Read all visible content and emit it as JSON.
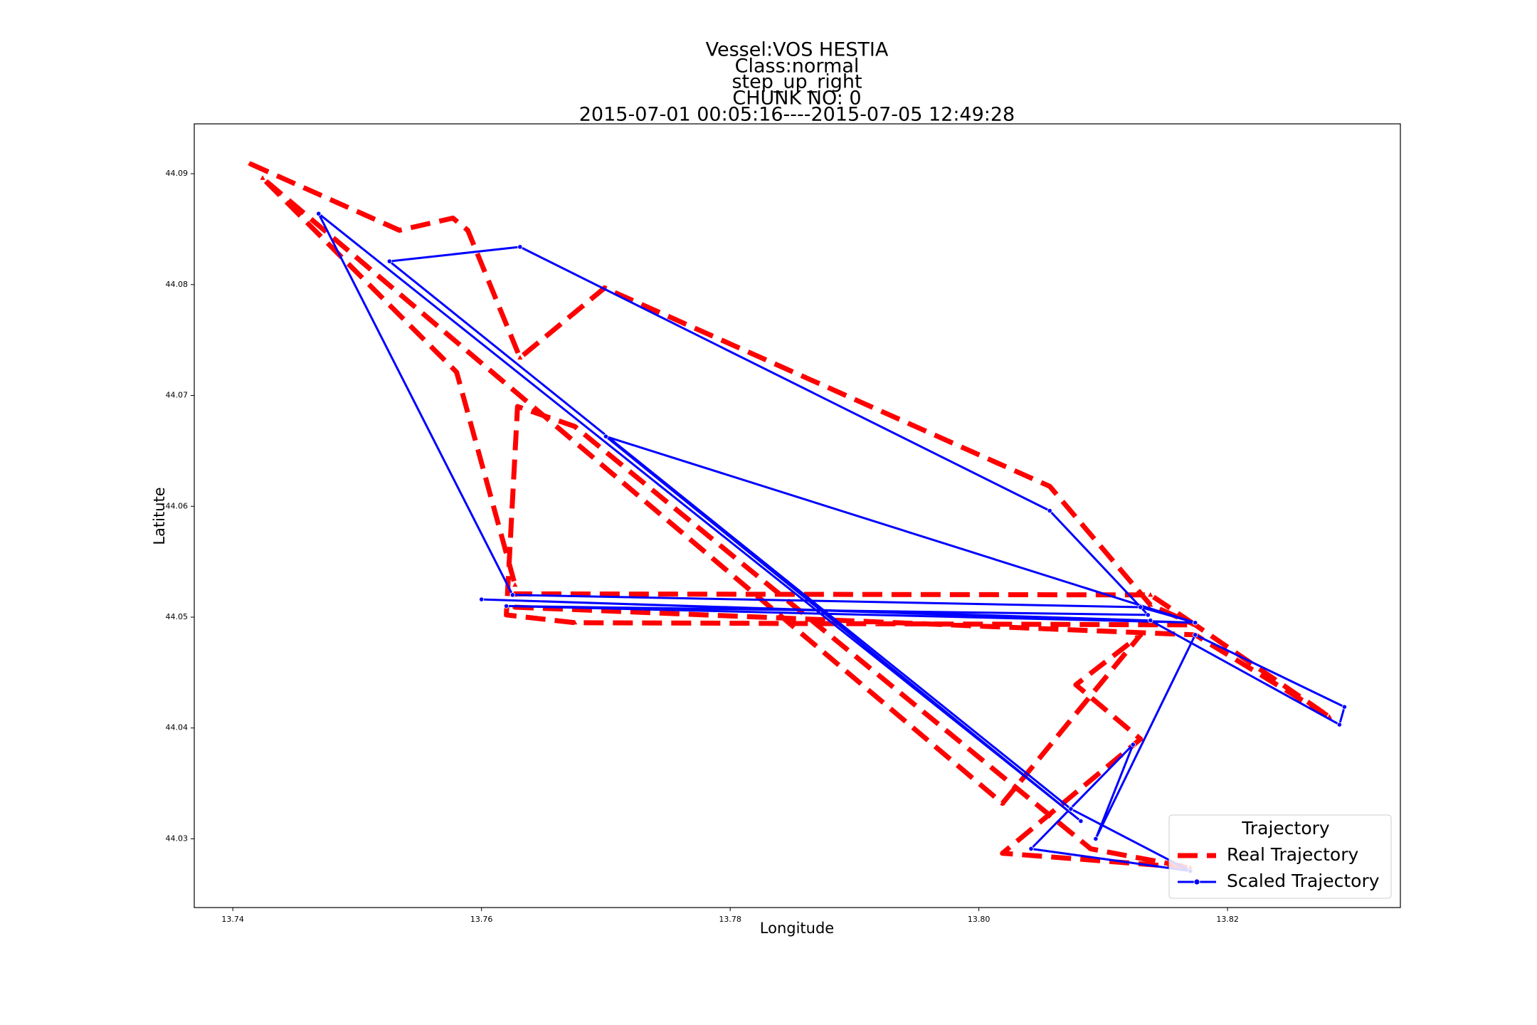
{
  "chart_data": {
    "type": "line",
    "title": [
      "Vessel:VOS HESTIA",
      "Class:normal",
      "step_up_right",
      "CHUNK NO: 0",
      "2015-07-01 00:05:16----2015-07-05 12:49:28"
    ],
    "x_label": "Longitude",
    "y_label": "Latitute",
    "xlim": [
      13.7369,
      13.8339
    ],
    "ylim": [
      44.0238,
      44.0945
    ],
    "xticks": [
      13.74,
      13.76,
      13.78,
      {
        "value": 13.8,
        "label": "13.80"
      },
      13.82
    ],
    "yticks": [
      44.03,
      44.04,
      44.05,
      44.06,
      44.07,
      44.08,
      44.09
    ],
    "legend_title": "Trajectory",
    "legend_position": "lower right",
    "series": [
      {
        "name": "Real Trajectory",
        "color": "#ff0000",
        "style": "dashed",
        "marker": "triangle",
        "x": [
          13.7414,
          13.7534,
          13.7577,
          13.7589,
          13.7631,
          13.7699,
          13.8057,
          13.8138,
          13.8174,
          13.8282,
          13.8174,
          13.7627,
          13.7627,
          13.8138,
          13.8174,
          13.7675,
          13.762,
          13.7629,
          13.7675,
          13.809,
          13.817,
          13.8019,
          13.813,
          13.8078,
          13.813,
          13.8019,
          13.7424,
          13.758,
          13.7627
        ],
        "values": [
          44.0909,
          44.0849,
          44.086,
          44.0849,
          44.0734,
          44.0797,
          44.0618,
          44.0511,
          44.0493,
          44.041,
          44.0484,
          44.0509,
          44.0521,
          44.052,
          44.0493,
          44.0495,
          44.0502,
          44.069,
          44.0672,
          44.0291,
          44.0274,
          44.0287,
          44.039,
          44.0439,
          44.0484,
          44.0332,
          44.0896,
          44.0721,
          44.0529
        ]
      },
      {
        "name": "Scaled Trajectory",
        "color": "#0000ff",
        "style": "solid",
        "marker": "circle",
        "x": [
          13.7469,
          13.7625,
          13.813,
          13.8174,
          13.76,
          13.8138,
          13.829,
          13.8294,
          13.8174,
          13.8094,
          13.8124,
          13.8042,
          13.817,
          13.8074,
          13.7526,
          13.7631,
          13.8057,
          13.8136,
          13.762,
          13.8174,
          13.77,
          13.8082,
          13.7469
        ],
        "values": [
          44.0864,
          44.052,
          44.0509,
          44.0495,
          44.0516,
          44.0497,
          44.0403,
          44.0419,
          44.0484,
          44.03,
          44.0385,
          44.0291,
          44.0271,
          44.0327,
          44.0821,
          44.0834,
          44.0596,
          44.0502,
          44.051,
          44.0495,
          44.0663,
          44.0316,
          44.0864
        ]
      }
    ]
  }
}
